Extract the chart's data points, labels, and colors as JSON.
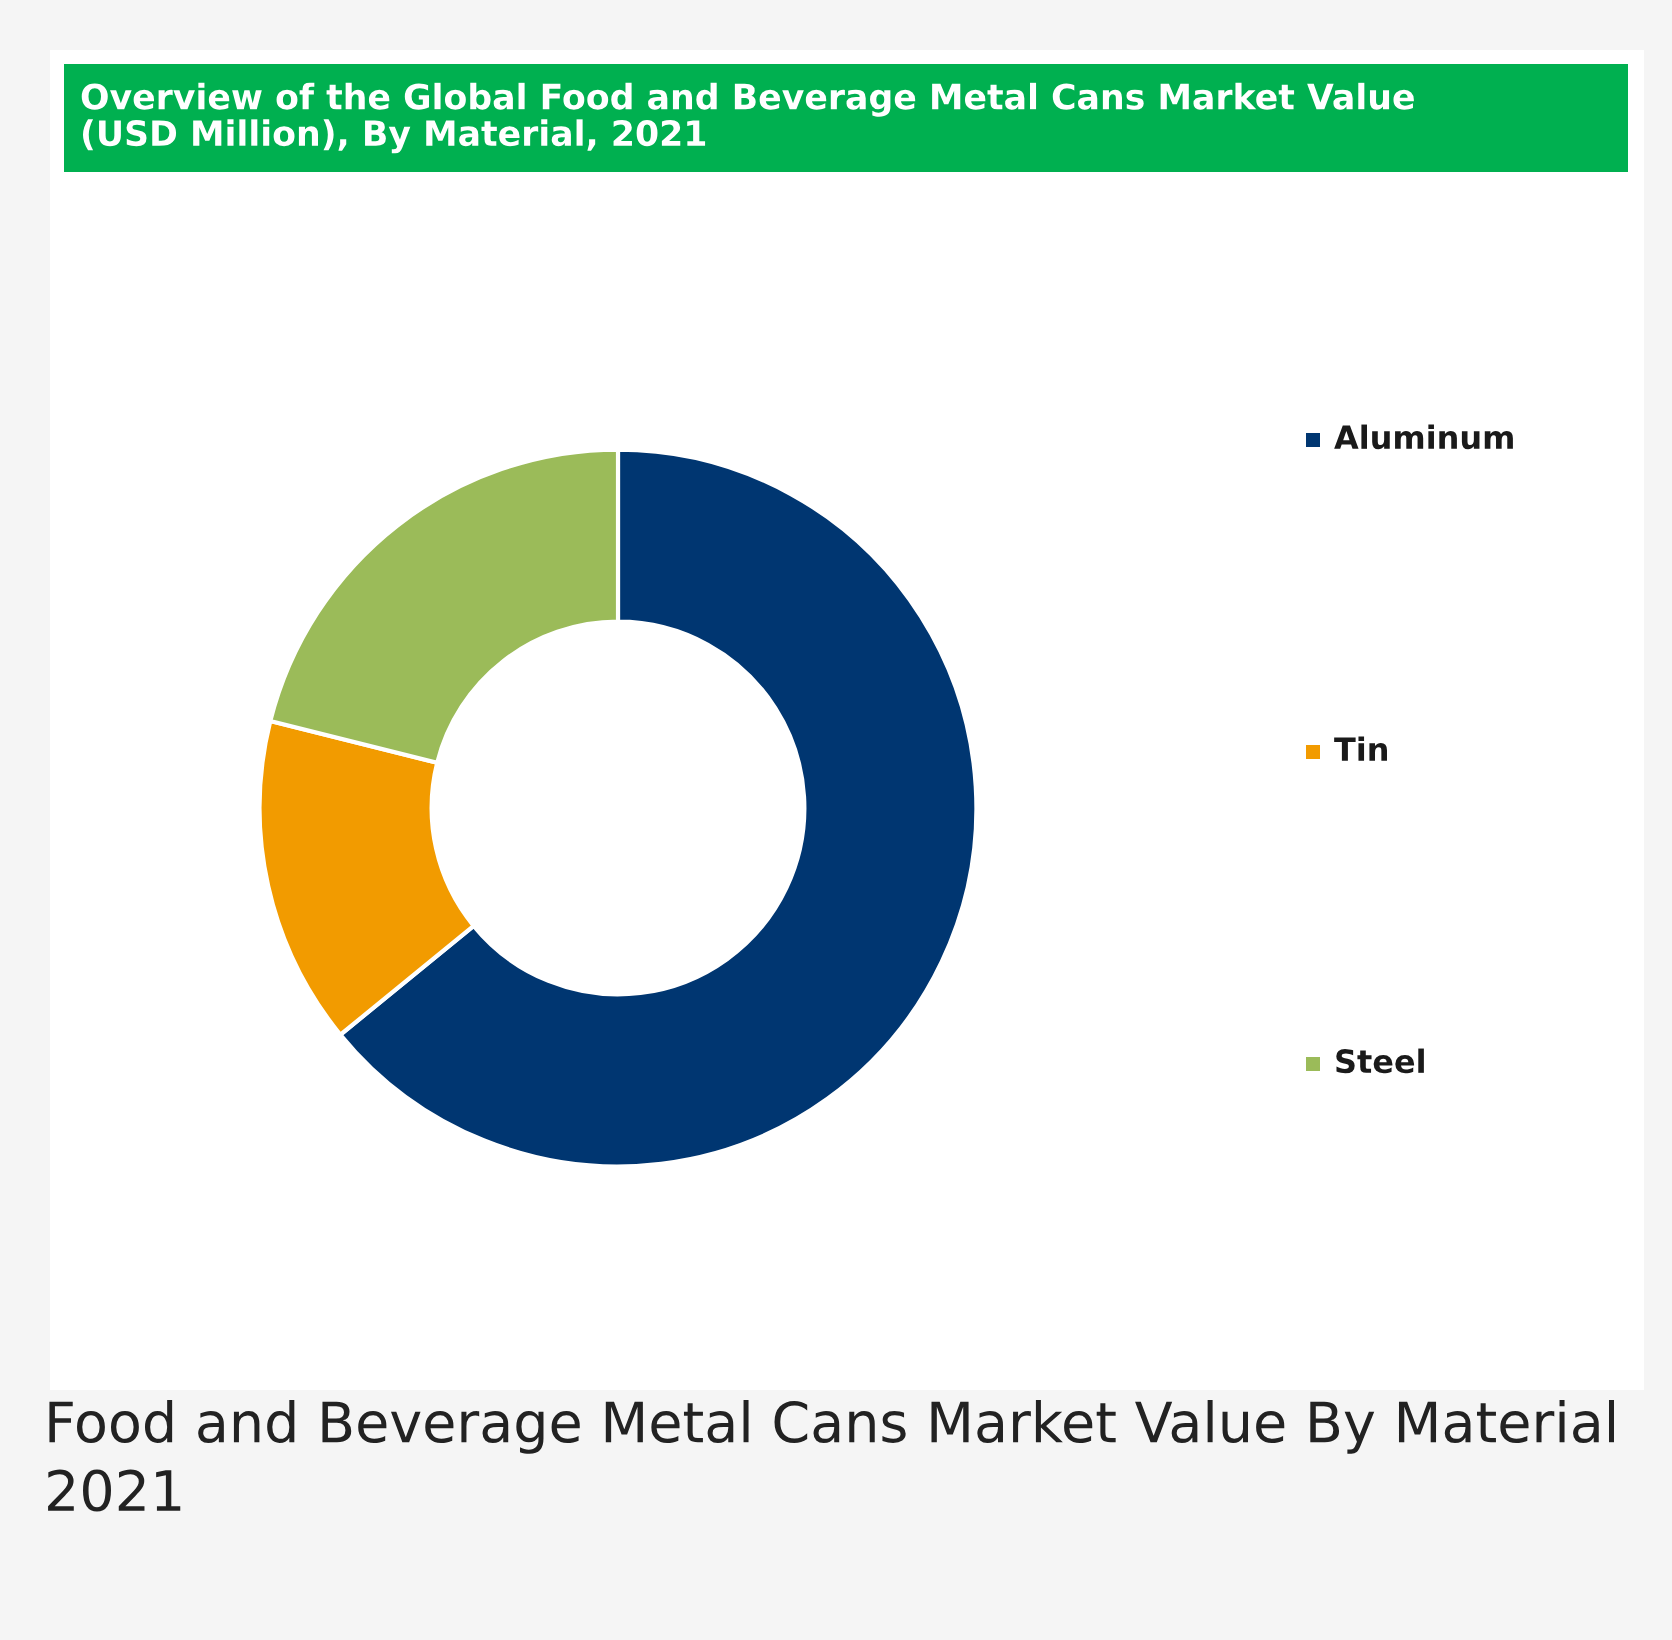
{
  "chart_data": {
    "type": "donut",
    "title": "Overview of the Global Food and Beverage Metal Cans Market Value\n(USD Million), By Material, 2021",
    "categories": [
      "Aluminum",
      "Tin",
      "Steel"
    ],
    "values": [
      64.1,
      14.8,
      21.1
    ],
    "colors": [
      "#003671",
      "#f29b00",
      "#9bbb59"
    ],
    "legend": "right",
    "annotations": [
      "Food and Beverage Metal Cans Market Value By Material 2021"
    ]
  }
}
